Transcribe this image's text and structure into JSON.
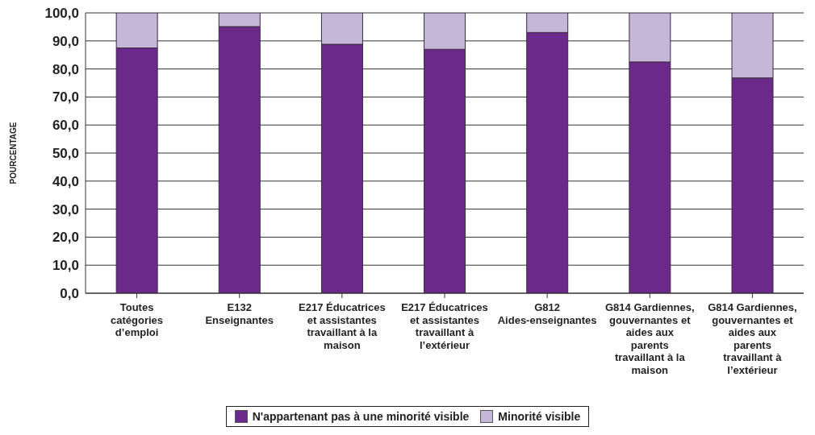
{
  "chart_data": {
    "type": "bar",
    "stacked": true,
    "ylabel": "POURCENTAGE",
    "categories": [
      "Toutes catégories d’emploi",
      "E132 Enseignantes",
      "E217 Éducatrices et assistantes travaillant à la maison",
      "E217 Éducatrices et assistantes travaillant à l’extérieur",
      "G812 Aides-enseignantes",
      "G814 Gardiennes, gouvernantes et aides aux parents travaillant à la maison",
      "G814 Gardiennes, gouvernantes et aides aux parents travaillant à l’extérieur"
    ],
    "series": [
      {
        "name": "N'appartenant pas à une minorité visible",
        "color": "#6b2a8a",
        "values": [
          87.5,
          95.1,
          88.8,
          87.0,
          93.0,
          82.5,
          76.8
        ]
      },
      {
        "name": "Minorité visible",
        "color": "#c4b7d8",
        "values": [
          12.5,
          4.9,
          11.2,
          13.0,
          7.0,
          17.5,
          23.2
        ]
      }
    ],
    "ylim": [
      0,
      100
    ],
    "yticks": [
      {
        "value": 0,
        "label": "0,0"
      },
      {
        "value": 10,
        "label": "10,0"
      },
      {
        "value": 20,
        "label": "20,0"
      },
      {
        "value": 30,
        "label": "30,0"
      },
      {
        "value": 40,
        "label": "40,0"
      },
      {
        "value": 50,
        "label": "50,0"
      },
      {
        "value": 60,
        "label": "60,0"
      },
      {
        "value": 70,
        "label": "70,0"
      },
      {
        "value": 80,
        "label": "80,0"
      },
      {
        "value": 90,
        "label": "90,0"
      },
      {
        "value": 100,
        "label": "100,0"
      }
    ],
    "grid": "y",
    "legend": "bottom"
  }
}
